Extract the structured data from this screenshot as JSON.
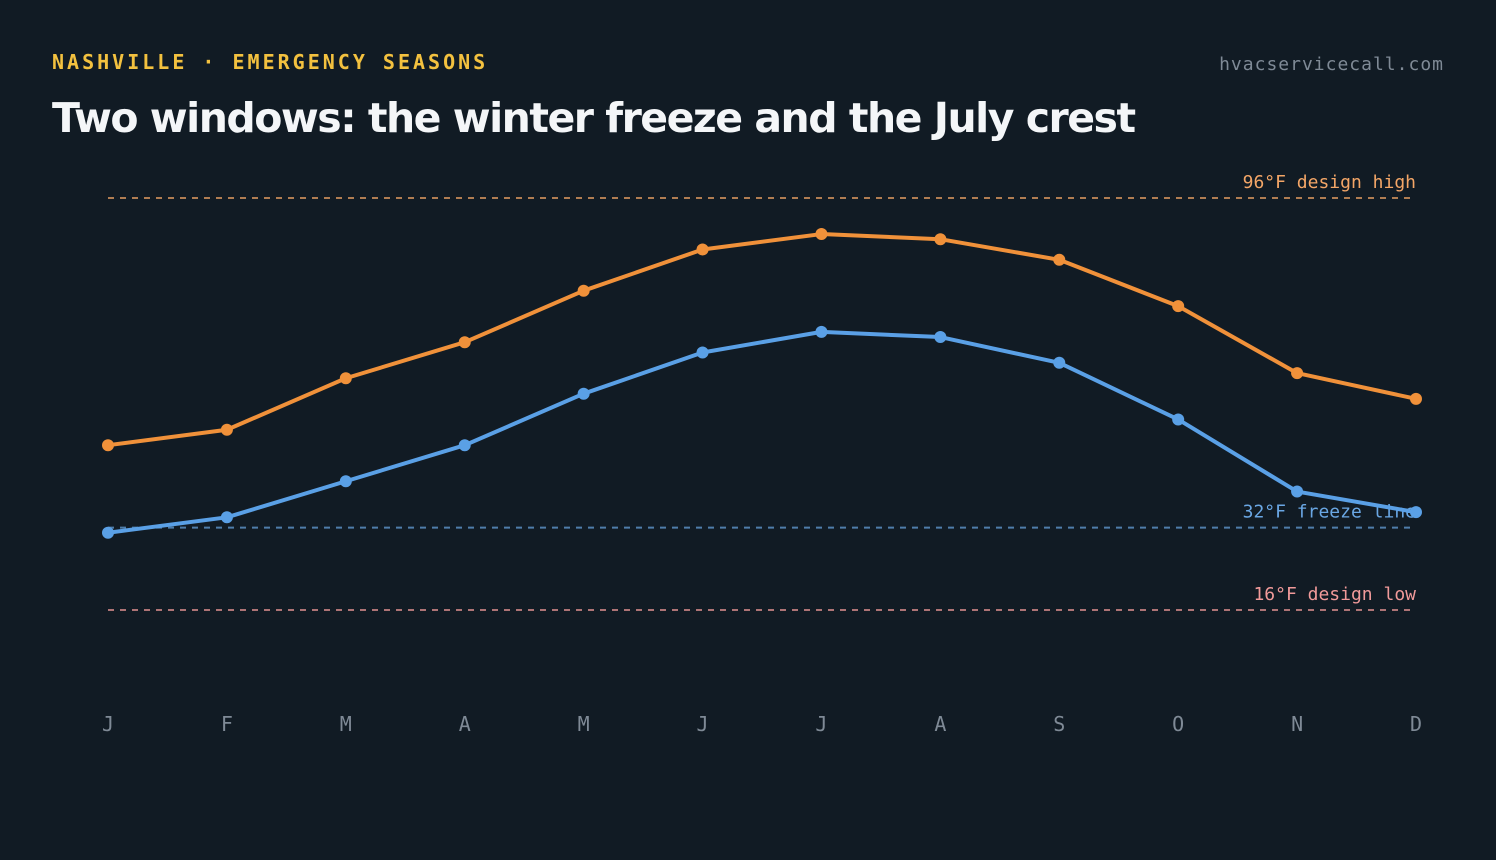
{
  "header": {
    "eyebrow": "NASHVILLE · EMERGENCY SEASONS",
    "site": "hvacservicecall.com",
    "title": "Two windows: the winter freeze and the July crest"
  },
  "chart_data": {
    "type": "line",
    "categories": [
      "J",
      "F",
      "M",
      "A",
      "M",
      "J",
      "J",
      "A",
      "S",
      "O",
      "N",
      "D"
    ],
    "series": [
      {
        "color": "#f0913a",
        "values": [
          48,
          51,
          61,
          68,
          78,
          86,
          89,
          88,
          84,
          75,
          62,
          57
        ]
      },
      {
        "color": "#5aa0e6",
        "values": [
          31,
          34,
          41,
          48,
          58,
          66,
          70,
          69,
          64,
          53,
          39,
          35
        ]
      }
    ],
    "reference_lines": [
      {
        "value": 96,
        "label": "96°F design high",
        "color": "#f4a667"
      },
      {
        "value": 32,
        "label": "32°F freeze line",
        "color": "#6aa7e4"
      },
      {
        "value": 16,
        "label": "16°F design low",
        "color": "#f19a9a"
      }
    ],
    "ylim": [
      0,
      96
    ],
    "grid": false,
    "legend": "none"
  }
}
